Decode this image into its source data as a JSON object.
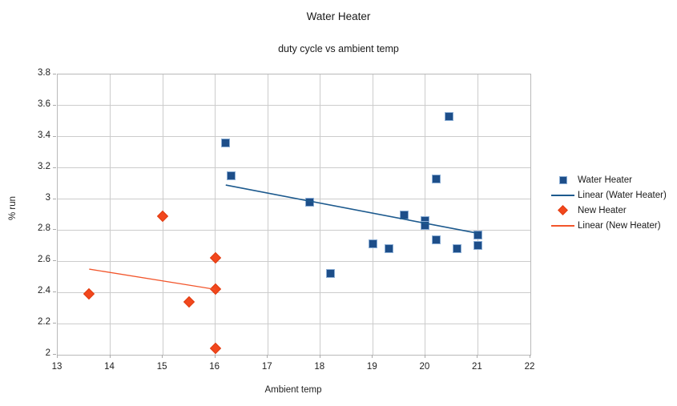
{
  "chart_data": {
    "type": "scatter",
    "title": "Water Heater",
    "subtitle": "duty cycle vs ambient temp",
    "xlabel": "Ambient temp",
    "ylabel": "% run",
    "xlim": [
      13,
      22
    ],
    "ylim": [
      2.0,
      3.8
    ],
    "grid": true,
    "legend_position": "right",
    "x_ticks": [
      {
        "value": 13,
        "label": "13"
      },
      {
        "value": 14,
        "label": "14"
      },
      {
        "value": 15,
        "label": "15"
      },
      {
        "value": 16,
        "label": "16"
      },
      {
        "value": 17,
        "label": "17"
      },
      {
        "value": 18,
        "label": "18"
      },
      {
        "value": 19,
        "label": "19"
      },
      {
        "value": 20,
        "label": "20"
      },
      {
        "value": 21,
        "label": "21"
      },
      {
        "value": 22,
        "label": "22"
      }
    ],
    "y_ticks": [
      {
        "value": 2.0,
        "label": "2"
      },
      {
        "value": 2.2,
        "label": "2.2"
      },
      {
        "value": 2.4,
        "label": "2.4"
      },
      {
        "value": 2.6,
        "label": "2.6"
      },
      {
        "value": 2.8,
        "label": "2.8"
      },
      {
        "value": 3.0,
        "label": "3"
      },
      {
        "value": 3.2,
        "label": "3.2"
      },
      {
        "value": 3.4,
        "label": "3.4"
      },
      {
        "value": 3.6,
        "label": "3.6"
      },
      {
        "value": 3.8,
        "label": "3.8"
      }
    ],
    "series": [
      {
        "name": "Water Heater",
        "marker": "square",
        "fill": "#1d4e89",
        "border": "#8aadd4",
        "points": [
          [
            16.2,
            3.36
          ],
          [
            16.3,
            3.15
          ],
          [
            17.8,
            2.98
          ],
          [
            18.2,
            2.52
          ],
          [
            19.0,
            2.71
          ],
          [
            19.3,
            2.68
          ],
          [
            19.6,
            2.9
          ],
          [
            20.0,
            2.86
          ],
          [
            20.0,
            2.83
          ],
          [
            20.2,
            2.74
          ],
          [
            20.2,
            3.13
          ],
          [
            20.45,
            3.53
          ],
          [
            20.6,
            2.68
          ],
          [
            21.0,
            2.77
          ],
          [
            21.0,
            2.7
          ]
        ]
      },
      {
        "name": "New Heater",
        "marker": "diamond",
        "fill": "#f2471d",
        "border": "#e03c10",
        "points": [
          [
            13.6,
            2.39
          ],
          [
            15.0,
            2.89
          ],
          [
            15.5,
            2.34
          ],
          [
            16.0,
            2.62
          ],
          [
            16.0,
            2.42
          ],
          [
            16.0,
            2.04
          ]
        ]
      }
    ],
    "trendlines": [
      {
        "name": "Linear (Water Heater)",
        "color": "#1d5a8e",
        "width": 1.6,
        "from": [
          16.2,
          3.09
        ],
        "to": [
          21.0,
          2.78
        ]
      },
      {
        "name": "Linear (New Heater)",
        "color": "#f2552b",
        "width": 1.3,
        "from": [
          13.6,
          2.55
        ],
        "to": [
          16.0,
          2.42
        ]
      }
    ],
    "legend": [
      {
        "label": "Water Heater",
        "swatch": "square",
        "color": "#1d4e89",
        "border": "#8aadd4"
      },
      {
        "label": "Linear (Water Heater)",
        "swatch": "line",
        "color": "#1d5a8e"
      },
      {
        "label": "New Heater",
        "swatch": "diamond",
        "color": "#f2471d",
        "border": "#e03c10"
      },
      {
        "label": "Linear (New Heater)",
        "swatch": "line",
        "color": "#f2552b"
      }
    ]
  }
}
